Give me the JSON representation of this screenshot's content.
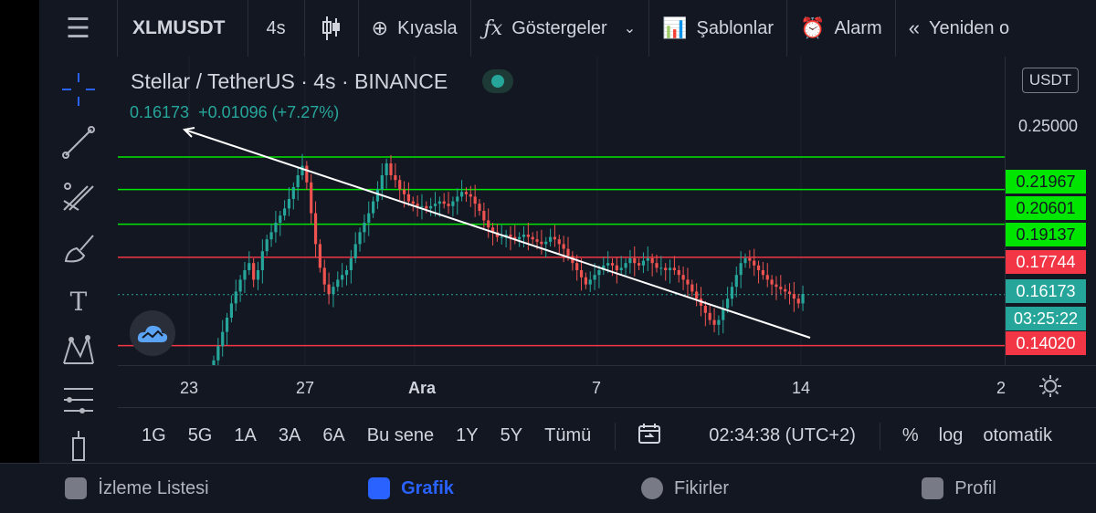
{
  "toolbar": {
    "symbol": "XLMUSDT",
    "interval": "4s",
    "compare": "Kıyasla",
    "indicators": "Göstergeler",
    "templates": "Şablonlar",
    "alarm": "Alarm",
    "replay": "Yeniden o"
  },
  "legend": {
    "title": "Stellar / TetherUS · 4s · BINANCE",
    "price": "0.16173",
    "change": "+0.01096 (+7.27%)"
  },
  "currency_button": "USDT",
  "price_axis": {
    "top_tick": "0.25000",
    "labels": [
      {
        "value": "0.21967",
        "color": "#00e600"
      },
      {
        "value": "0.20601",
        "color": "#00e600"
      },
      {
        "value": "0.19137",
        "color": "#00e600"
      },
      {
        "value": "0.17744",
        "color": "#f23645"
      },
      {
        "value": "0.16173",
        "color": "#26a69a"
      },
      {
        "value": "03:25:22",
        "color": "#26a69a"
      },
      {
        "value": "0.14020",
        "color": "#f23645"
      }
    ]
  },
  "time_axis": [
    "23",
    "27",
    "Ara",
    "7",
    "14",
    "2"
  ],
  "ranges": [
    "1G",
    "5G",
    "1A",
    "3A",
    "6A",
    "Bu sene",
    "1Y",
    "5Y",
    "Tümü"
  ],
  "clock": "02:34:38 (UTC+2)",
  "scale_options": [
    "%",
    "log",
    "otomatik"
  ],
  "nav": [
    "İzleme Listesi",
    "Grafik",
    "Fikirler",
    "Profil"
  ],
  "colors": {
    "background": "#131722",
    "up": "#26a69a",
    "down": "#ef5350",
    "support_green": "#00e600",
    "resistance_red": "#f23645",
    "accent": "#2962ff"
  },
  "chart_data": {
    "type": "candlestick",
    "title": "Stellar / TetherUS · 4s · BINANCE",
    "last_price": 0.16173,
    "ylim": [
      0.132,
      0.262
    ],
    "x_ticks": [
      "23",
      "27",
      "Ara",
      "7",
      "14",
      "2"
    ],
    "horizontal_levels": [
      {
        "value": 0.21967,
        "color": "#00e600"
      },
      {
        "value": 0.20601,
        "color": "#00e600"
      },
      {
        "value": 0.19137,
        "color": "#00e600"
      },
      {
        "value": 0.17744,
        "color": "#f23645"
      },
      {
        "value": 0.1402,
        "color": "#f23645"
      }
    ],
    "close_series": [
      0.134,
      0.14,
      0.146,
      0.152,
      0.158,
      0.163,
      0.168,
      0.172,
      0.175,
      0.168,
      0.172,
      0.18,
      0.185,
      0.188,
      0.192,
      0.195,
      0.198,
      0.202,
      0.207,
      0.212,
      0.216,
      0.209,
      0.196,
      0.183,
      0.173,
      0.166,
      0.162,
      0.165,
      0.168,
      0.17,
      0.172,
      0.177,
      0.183,
      0.188,
      0.192,
      0.196,
      0.201,
      0.206,
      0.212,
      0.217,
      0.212,
      0.21,
      0.206,
      0.204,
      0.201,
      0.2,
      0.199,
      0.199,
      0.198,
      0.199,
      0.2,
      0.201,
      0.2,
      0.199,
      0.201,
      0.203,
      0.205,
      0.204,
      0.203,
      0.2,
      0.197,
      0.193,
      0.19,
      0.188,
      0.186,
      0.186,
      0.187,
      0.186,
      0.185,
      0.186,
      0.187,
      0.186,
      0.185,
      0.184,
      0.183,
      0.184,
      0.186,
      0.185,
      0.183,
      0.181,
      0.178,
      0.175,
      0.172,
      0.169,
      0.166,
      0.168,
      0.17,
      0.172,
      0.174,
      0.175,
      0.174,
      0.172,
      0.173,
      0.175,
      0.177,
      0.175,
      0.174,
      0.176,
      0.177,
      0.175,
      0.173,
      0.173,
      0.172,
      0.173,
      0.172,
      0.17,
      0.168,
      0.166,
      0.163,
      0.16,
      0.157,
      0.154,
      0.151,
      0.149,
      0.151,
      0.156,
      0.16,
      0.165,
      0.17,
      0.175,
      0.177,
      0.176,
      0.174,
      0.172,
      0.17,
      0.168,
      0.166,
      0.165,
      0.164,
      0.163,
      0.162,
      0.16,
      0.158,
      0.162
    ]
  }
}
